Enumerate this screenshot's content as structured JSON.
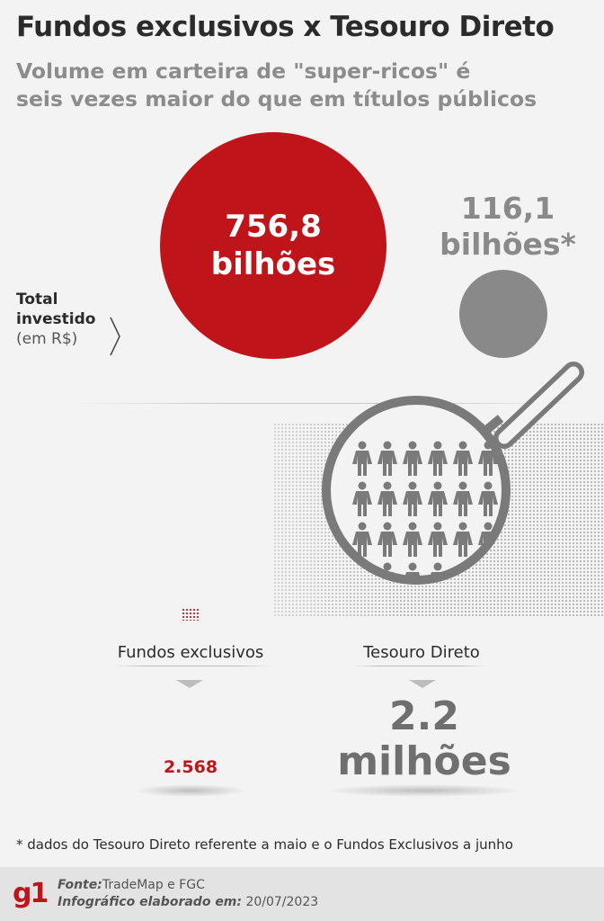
{
  "title": "Fundos exclusivos x Tesouro Direto",
  "subtitle_line1": "Volume em carteira de \"super-ricos\" é",
  "subtitle_line2": "seis vezes maior do que em títulos públicos",
  "fundos_value_line1": "756,8",
  "fundos_value_line2": "bilhões",
  "tesouro_value_line1": "116,1",
  "tesouro_value_line2": "bilhões*",
  "total_label_line1": "Total",
  "total_label_line2": "investido",
  "total_label_line3": "(em R$)",
  "category_fundos": "Fundos exclusivos",
  "category_tesouro": "Tesouro Direto",
  "count_fundos": "2.568",
  "count_tesouro_line1": "2.2",
  "count_tesouro_line2": "milhões",
  "footnote": "* dados do Tesouro Direto referente a maio e o Fundos Exclusivos a junho",
  "footer": {
    "logo": "g1",
    "source_label": "Fonte:",
    "source_value": "TradeMap e FGC",
    "credit_label": "Infográfico elaborado em:",
    "credit_value": "20/07/2023"
  },
  "colors": {
    "red": "#c0141b",
    "gray_circle": "#898989",
    "person_icon": "#7a7a7a"
  },
  "icons": [
    "chevron-right-icon",
    "magnifying-glass-icon",
    "person-icon"
  ]
}
